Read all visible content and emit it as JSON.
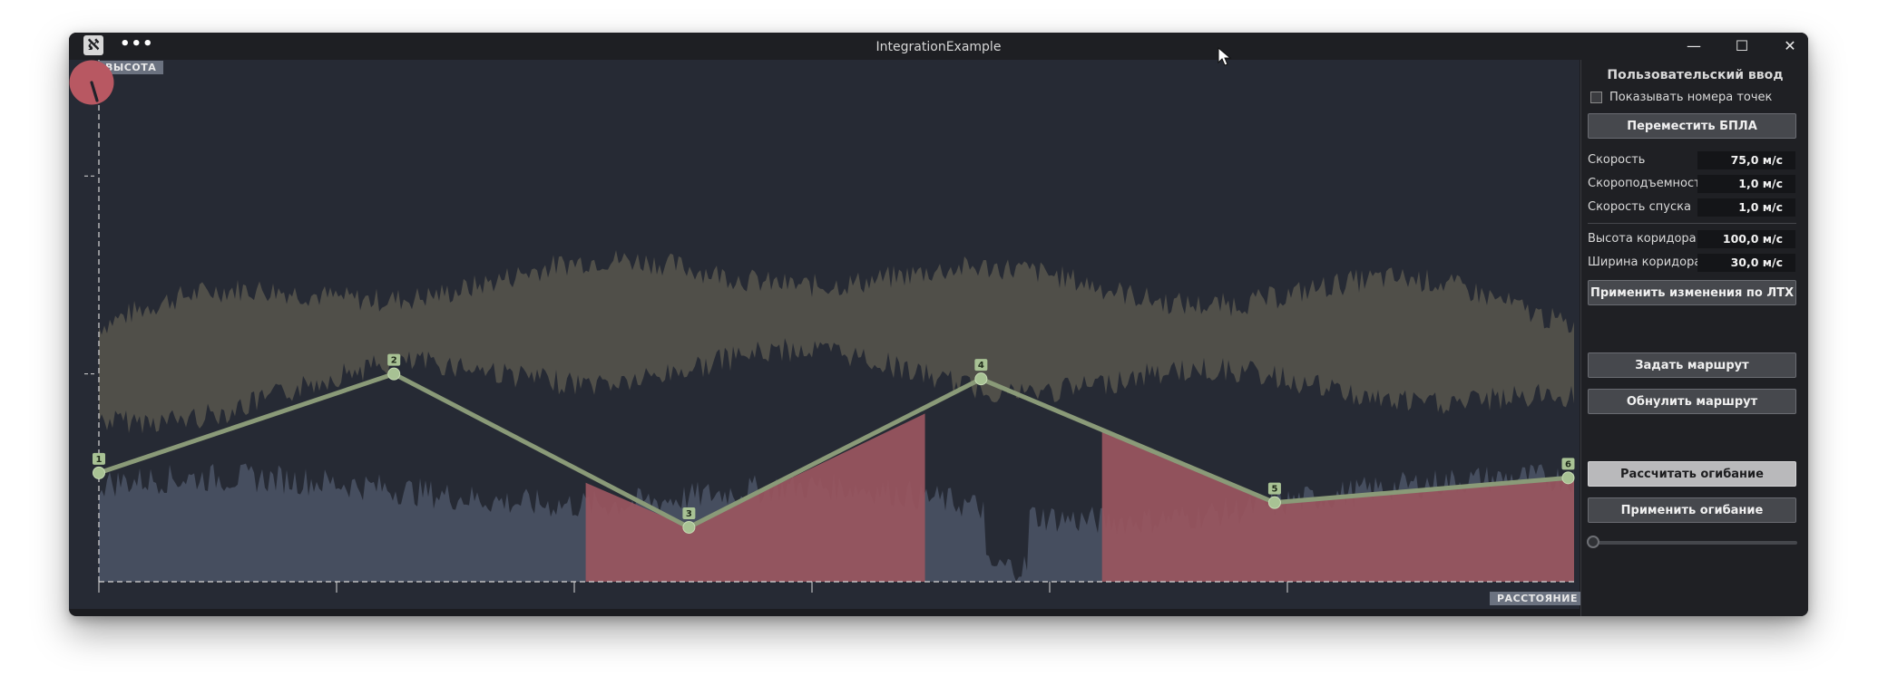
{
  "window": {
    "title": "IntegrationExample",
    "menu_icon": "more-dots-icon",
    "controls": [
      "minimize-icon",
      "maximize-icon",
      "close-icon"
    ]
  },
  "plot": {
    "y_axis_label": "ВЫСОТА",
    "x_axis_label": "РАССТОЯНИЕ",
    "colors": {
      "background": "#262a34",
      "terrain": "#4a5264",
      "obstacle": "#9a5660",
      "upper_band": "#58564d",
      "route": "#8a9a78",
      "compass": "#b85862"
    },
    "route_points": [
      {
        "label": "1",
        "d": 0,
        "h": 0.22
      },
      {
        "label": "2",
        "d": 0.2,
        "h": 0.42
      },
      {
        "label": "3",
        "d": 0.4,
        "h": 0.11
      },
      {
        "label": "4",
        "d": 0.598,
        "h": 0.41
      },
      {
        "label": "5",
        "d": 0.797,
        "h": 0.16
      },
      {
        "label": "6",
        "d": 0.996,
        "h": 0.21
      }
    ]
  },
  "panel": {
    "title": "Пользовательский ввод",
    "show_point_numbers": {
      "label": "Показывать номера точек",
      "checked": false
    },
    "move_uav_button": "Переместить БПЛА",
    "fields": [
      {
        "label": "Скорость",
        "value": "75,0 м/с"
      },
      {
        "label": "Скороподъемность",
        "value": "1,0 м/с"
      },
      {
        "label": "Скорость спуска",
        "value": "1,0 м/с"
      },
      {
        "label": "Высота коридора",
        "value": "100,0 м/с"
      },
      {
        "label": "Ширина коридора",
        "value": "30,0 м/с"
      }
    ],
    "apply_ltx_button": "Применить изменения по ЛТХ",
    "set_route_button": "Задать маршрут",
    "reset_route_button": "Обнулить маршрут",
    "calc_envelope_button": "Рассчитать огибание",
    "apply_envelope_button": "Применить огибание",
    "slider_value": 0
  }
}
